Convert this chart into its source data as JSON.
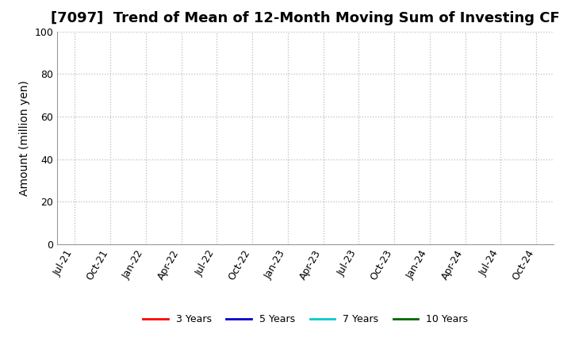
{
  "title": "[7097]  Trend of Mean of 12-Month Moving Sum of Investing CF",
  "ylabel": "Amount (million yen)",
  "ylim": [
    0,
    100
  ],
  "yticks": [
    0,
    20,
    40,
    60,
    80,
    100
  ],
  "x_labels": [
    "Jul-21",
    "Oct-21",
    "Jan-22",
    "Apr-22",
    "Jul-22",
    "Oct-22",
    "Jan-23",
    "Apr-23",
    "Jul-23",
    "Oct-23",
    "Jan-24",
    "Apr-24",
    "Jul-24",
    "Oct-24"
  ],
  "legend_entries": [
    {
      "label": "3 Years",
      "color": "#FF0000",
      "lw": 2.0
    },
    {
      "label": "5 Years",
      "color": "#0000CC",
      "lw": 2.0
    },
    {
      "label": "7 Years",
      "color": "#00CCCC",
      "lw": 2.0
    },
    {
      "label": "10 Years",
      "color": "#006600",
      "lw": 2.0
    }
  ],
  "background_color": "#FFFFFF",
  "grid_color": "#BBBBBB",
  "title_fontsize": 13,
  "axis_label_fontsize": 10,
  "tick_fontsize": 9,
  "legend_fontsize": 9
}
